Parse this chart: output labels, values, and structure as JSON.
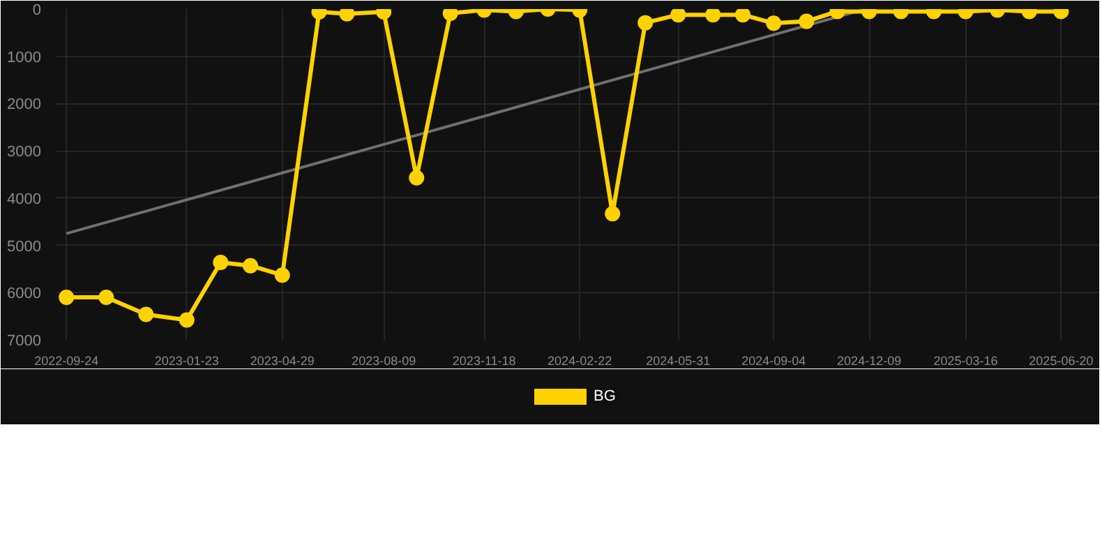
{
  "chart_data": {
    "type": "line",
    "ylim": [
      7000,
      0
    ],
    "yticks": [
      0,
      1000,
      2000,
      3000,
      4000,
      5000,
      6000,
      7000
    ],
    "xlim": [
      "2022-09-14",
      "2025-07-29"
    ],
    "xticks": [
      "2022-09-24",
      "2023-01-23",
      "2023-04-29",
      "2023-08-09",
      "2023-11-18",
      "2024-02-22",
      "2024-05-31",
      "2024-09-04",
      "2024-12-09",
      "2025-03-16",
      "2025-06-20"
    ],
    "grid": true,
    "legend": "bottom",
    "marker": "circle",
    "line_style": "solid",
    "series": [
      {
        "name": "BG",
        "color": "#ffd200",
        "x": [
          "2022-09-24",
          "2022-11-03",
          "2022-12-13",
          "2023-01-23",
          "2023-02-26",
          "2023-03-28",
          "2023-04-29",
          "2023-06-05",
          "2023-07-03",
          "2023-08-09",
          "2023-09-11",
          "2023-10-15",
          "2023-11-18",
          "2023-12-20",
          "2024-01-21",
          "2024-02-22",
          "2024-03-26",
          "2024-04-28",
          "2024-05-31",
          "2024-07-05",
          "2024-08-04",
          "2024-09-04",
          "2024-10-07",
          "2024-11-07",
          "2024-12-09",
          "2025-01-10",
          "2025-02-12",
          "2025-03-16",
          "2025-04-17",
          "2025-05-19",
          "2025-06-20"
        ],
        "values": [
          6100,
          6100,
          6460,
          6580,
          5360,
          5430,
          5630,
          60,
          100,
          60,
          3570,
          90,
          20,
          50,
          0,
          20,
          4330,
          290,
          120,
          120,
          120,
          300,
          260,
          50,
          50,
          50,
          50,
          50,
          20,
          50,
          50
        ]
      },
      {
        "type": "line",
        "color": "#707070",
        "marker": "none",
        "x": [
          "2022-09-24",
          "2024-12-05"
        ],
        "values": [
          4750,
          0
        ]
      }
    ]
  }
}
